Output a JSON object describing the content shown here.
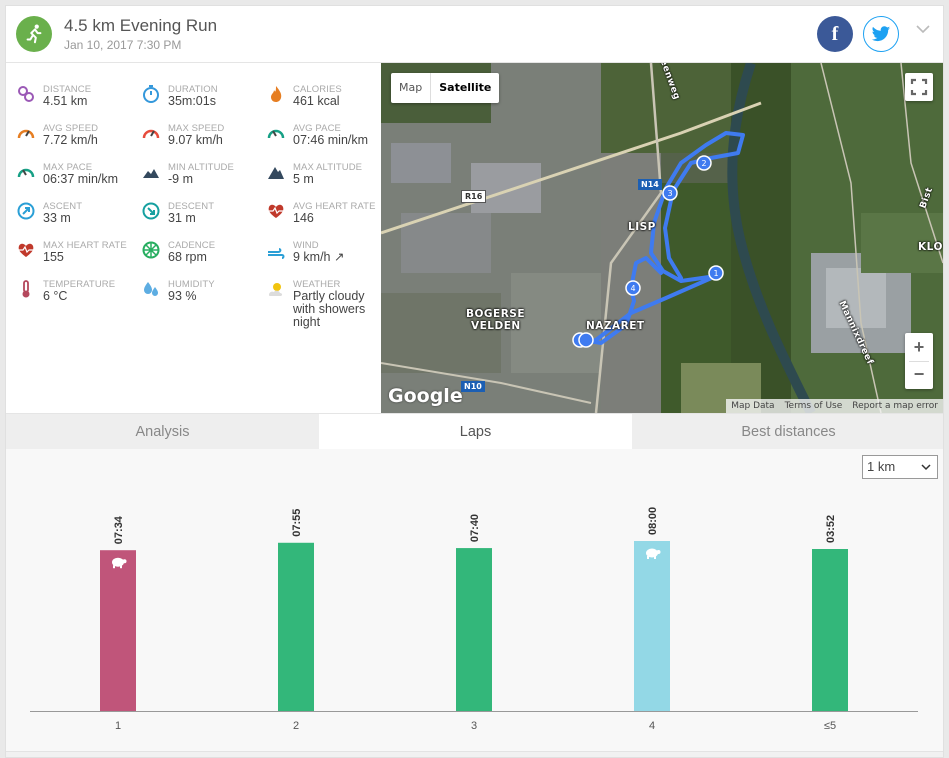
{
  "header": {
    "title": "4.5 km Evening Run",
    "subtitle": "Jan 10, 2017 7:30 PM",
    "facebook_label": "f",
    "colors": {
      "activity": "#6ab04c",
      "facebook": "#3b5998",
      "twitter": "#1da1f2"
    }
  },
  "stats": [
    {
      "label": "DISTANCE",
      "value": "4.51 km",
      "icon": "distance-icon",
      "color": "#9b59b6"
    },
    {
      "label": "DURATION",
      "value": "35m:01s",
      "icon": "stopwatch-icon",
      "color": "#3498db"
    },
    {
      "label": "CALORIES",
      "value": "461 kcal",
      "icon": "flame-icon",
      "color": "#e67e22"
    },
    {
      "label": "AVG SPEED",
      "value": "7.72 km/h",
      "icon": "speedometer-icon",
      "color": "#e67e22"
    },
    {
      "label": "MAX SPEED",
      "value": "9.07 km/h",
      "icon": "speedometer-icon",
      "color": "#e74c3c"
    },
    {
      "label": "AVG PACE",
      "value": "07:46 min/km",
      "icon": "pace-icon",
      "color": "#16a085"
    },
    {
      "label": "MAX PACE",
      "value": "06:37 min/km",
      "icon": "pace-icon",
      "color": "#16a085"
    },
    {
      "label": "MIN ALTITUDE",
      "value": "-9 m",
      "icon": "mountain-low-icon",
      "color": "#34495e"
    },
    {
      "label": "MAX ALTITUDE",
      "value": "5 m",
      "icon": "mountain-high-icon",
      "color": "#34495e"
    },
    {
      "label": "ASCENT",
      "value": "33 m",
      "icon": "ascent-icon",
      "color": "#2a9fd6"
    },
    {
      "label": "DESCENT",
      "value": "31 m",
      "icon": "descent-icon",
      "color": "#16a0a0"
    },
    {
      "label": "AVG HEART RATE",
      "value": "146",
      "icon": "heart-rate-icon",
      "color": "#c0392b"
    },
    {
      "label": "MAX HEART RATE",
      "value": "155",
      "icon": "heart-rate-icon",
      "color": "#c0392b"
    },
    {
      "label": "CADENCE",
      "value": "68 rpm",
      "icon": "cadence-icon",
      "color": "#27ae60"
    },
    {
      "label": "WIND",
      "value": "9 km/h ↗",
      "icon": "wind-icon",
      "color": "#2a9fd6"
    },
    {
      "label": "TEMPERATURE",
      "value": "6 °C",
      "icon": "thermometer-icon",
      "color": "#b5485d"
    },
    {
      "label": "HUMIDITY",
      "value": "93 %",
      "icon": "humidity-icon",
      "color": "#5dade2"
    },
    {
      "label": "WEATHER",
      "value": "Partly cloudy with showers night",
      "icon": "weather-icon",
      "color": "#f1c40f"
    }
  ],
  "map": {
    "toggle_map": "Map",
    "toggle_satellite": "Satellite",
    "labels": [
      "LISP",
      "BOGERSE",
      "VELDEN",
      "NAZARET",
      "KLO",
      "Bist",
      "Mannixdreef",
      "leenweg"
    ],
    "road_signs": [
      "R16",
      "N14",
      "N10"
    ],
    "markers": [
      "1",
      "2",
      "3",
      "4"
    ],
    "google": "Google",
    "footer": [
      "Map Data",
      "Terms of Use",
      "Report a map error"
    ]
  },
  "tabs": [
    {
      "label": "Analysis",
      "active": false
    },
    {
      "label": "Laps",
      "active": true
    },
    {
      "label": "Best distances",
      "active": false
    }
  ],
  "lap_select": {
    "value": "1 km"
  },
  "chart_data": {
    "type": "bar",
    "categories": [
      "1",
      "2",
      "3",
      "4",
      "≤5"
    ],
    "values": [
      "07:34",
      "07:55",
      "07:40",
      "08:00",
      "03:52"
    ],
    "seconds": [
      454,
      475,
      460,
      480,
      232
    ],
    "colors": [
      "#c0557a",
      "#33b77a",
      "#33b77a",
      "#93d8e6",
      "#33b77a"
    ],
    "markers": [
      "turtle-icon",
      "",
      "",
      "turtle-icon",
      ""
    ],
    "xlabel": "",
    "ylabel": ""
  }
}
